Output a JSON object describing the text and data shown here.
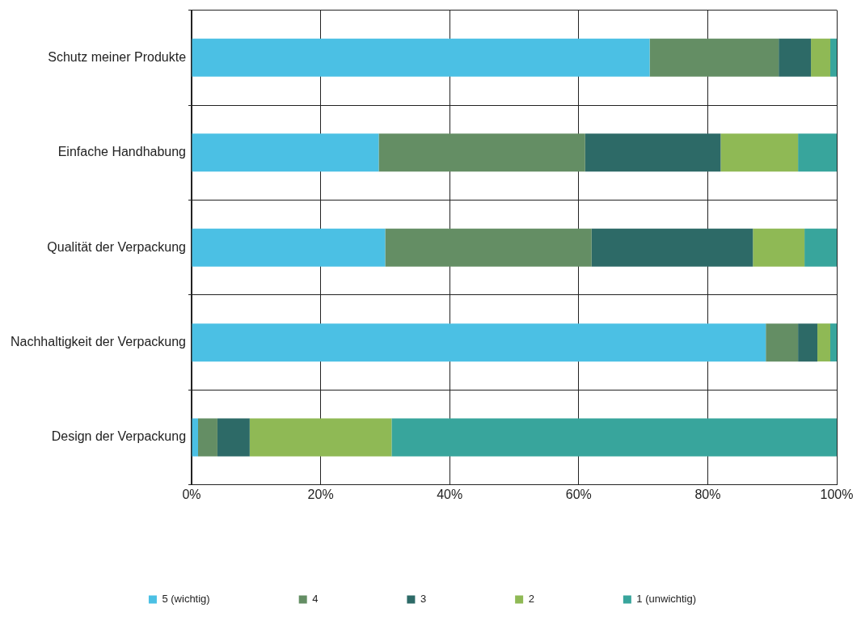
{
  "chart_data": {
    "type": "bar",
    "orientation": "horizontal",
    "stacked": true,
    "categories": [
      "Schutz meiner Produkte",
      "Einfache Handhabung",
      "Qualität der Verpackung",
      "Nachhaltigkeit der Verpackung",
      "Design der Verpackung"
    ],
    "series": [
      {
        "name": "5 (wichtig)",
        "color": "#4bc0e4",
        "values": [
          71,
          29,
          30,
          89,
          1
        ]
      },
      {
        "name": "4",
        "color": "#648e64",
        "values": [
          20,
          32,
          32,
          5,
          3
        ]
      },
      {
        "name": "3",
        "color": "#2d6a67",
        "values": [
          5,
          21,
          25,
          3,
          5
        ]
      },
      {
        "name": "2",
        "color": "#8fb955",
        "values": [
          3,
          12,
          8,
          2,
          22
        ]
      },
      {
        "name": "1 (unwichtig)",
        "color": "#38a59c",
        "values": [
          1,
          6,
          5,
          1,
          69
        ]
      }
    ],
    "xlim": [
      0,
      100
    ],
    "xticks": [
      {
        "value": 0,
        "label": "0%"
      },
      {
        "value": 20,
        "label": "20%"
      },
      {
        "value": 40,
        "label": "40%"
      },
      {
        "value": 60,
        "label": "60%"
      },
      {
        "value": 80,
        "label": "80%"
      },
      {
        "value": 100,
        "label": "100%"
      }
    ],
    "grid": true,
    "legend": "bottom"
  }
}
